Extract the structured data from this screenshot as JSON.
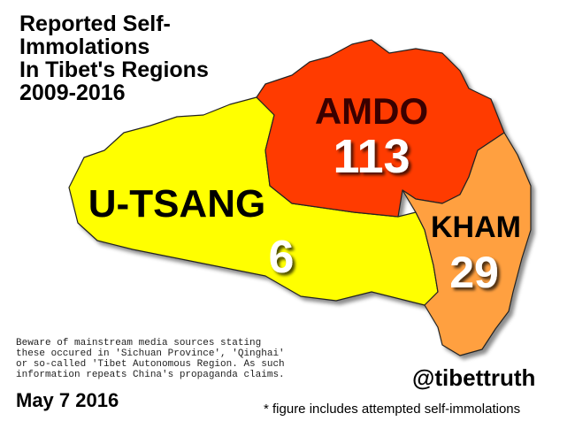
{
  "title_lines": [
    "Reported Self-",
    "Immolations",
    "In Tibet's Regions",
    "2009-2016"
  ],
  "regions": [
    {
      "name": "AMDO",
      "count": 113
    },
    {
      "name": "U-TSANG",
      "count": 6
    },
    {
      "name": "KHAM",
      "count": 29
    }
  ],
  "disclaimer_lines": [
    "Beware of mainstream media sources stating",
    "these occured in 'Sichuan Province', 'Qinghai'",
    "or so-called 'Tibet Autonomous Region. As such",
    "information repeats China's propaganda claims."
  ],
  "date": "May 7 2016",
  "handle": "@tibettruth",
  "footnote": "* figure includes attempted self-immolations"
}
